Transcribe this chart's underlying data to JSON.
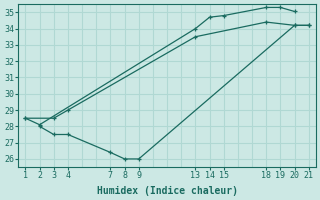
{
  "bg_color": "#cce8e4",
  "grid_color": "#b0d8d3",
  "line_color": "#1a6b60",
  "xlabel": "Humidex (Indice chaleur)",
  "xlim": [
    0.5,
    21.5
  ],
  "ylim": [
    25.5,
    35.5
  ],
  "yticks": [
    26,
    27,
    28,
    29,
    30,
    31,
    32,
    33,
    34,
    35
  ],
  "xticks": [
    1,
    2,
    3,
    4,
    7,
    8,
    9,
    13,
    14,
    15,
    18,
    19,
    20,
    21
  ],
  "lines": [
    {
      "x": [
        1,
        2,
        13,
        14,
        15,
        18,
        19,
        20
      ],
      "y": [
        28.5,
        28.1,
        34.0,
        34.7,
        34.8,
        35.3,
        35.3,
        35.05
      ]
    },
    {
      "x": [
        1,
        3,
        4,
        13,
        18,
        20,
        21
      ],
      "y": [
        28.5,
        28.5,
        29.0,
        33.5,
        34.4,
        34.2,
        34.2
      ]
    },
    {
      "x": [
        2,
        3,
        4,
        7,
        8,
        9,
        20,
        21
      ],
      "y": [
        28.0,
        27.5,
        27.5,
        26.4,
        26.0,
        26.0,
        34.2,
        34.2
      ]
    }
  ]
}
